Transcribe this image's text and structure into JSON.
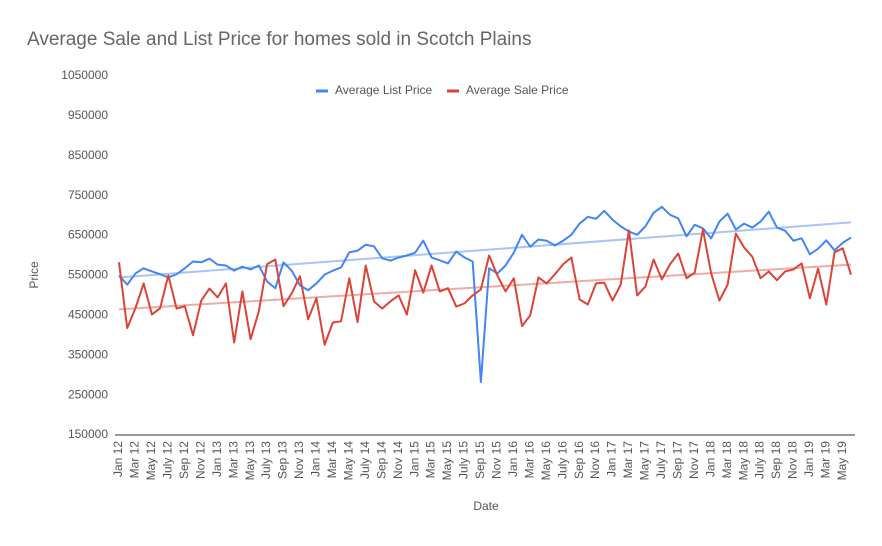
{
  "chart_data": {
    "type": "line",
    "title": "Average Sale and List Price for homes sold in Scotch Plains",
    "x_label": "Date",
    "y_label": "Price",
    "categories": [
      "Jan 12",
      null,
      "Mar 12",
      null,
      "May 12",
      null,
      "July 12",
      null,
      "Sep 12",
      null,
      "Nov 12",
      null,
      "Jan 13",
      null,
      "Mar 13",
      null,
      "May 13",
      null,
      "July 13",
      null,
      "Sep 13",
      null,
      "Nov 13",
      null,
      "Jan 14",
      null,
      "Mar 14",
      null,
      "May 14",
      null,
      "July 14",
      null,
      "Sep 14",
      null,
      "Nov 14",
      null,
      "Jan 15",
      null,
      "Mar 15",
      null,
      "May 15",
      null,
      "July 15",
      null,
      "Sep 15",
      null,
      "Nov 15",
      null,
      "Jan 16",
      null,
      "Mar 16",
      null,
      "May 16",
      null,
      "July 16",
      null,
      "Sep 16",
      null,
      "Nov 16",
      null,
      "Jan 17",
      null,
      "Mar 17",
      null,
      "May 17",
      null,
      "July 17",
      null,
      "Sep 17",
      null,
      "Nov 17",
      null,
      "Jan 18",
      null,
      "Mar 18",
      null,
      "May 18",
      null,
      "July 18",
      null,
      "Sep 18",
      null,
      "Nov 18",
      null,
      "Jan 19",
      null,
      "Mar 19",
      null,
      "May 19",
      null
    ],
    "series": [
      {
        "name": "Average List Price",
        "color": "#4285f4",
        "trend": [
          545000,
          683000
        ],
        "trend_color": "#a8c4f8",
        "values": [
          550000,
          527000,
          555000,
          568000,
          560000,
          553000,
          545000,
          553000,
          568000,
          585000,
          583000,
          592000,
          577000,
          575000,
          562000,
          572000,
          565000,
          575000,
          535000,
          518000,
          583000,
          562000,
          525000,
          513000,
          530000,
          552000,
          562000,
          570000,
          608000,
          612000,
          627000,
          623000,
          593000,
          587000,
          595000,
          600000,
          607000,
          637000,
          595000,
          588000,
          580000,
          610000,
          595000,
          585000,
          283000,
          568000,
          555000,
          575000,
          607000,
          652000,
          622000,
          640000,
          637000,
          625000,
          637000,
          652000,
          680000,
          697000,
          692000,
          712000,
          690000,
          673000,
          660000,
          652000,
          673000,
          707000,
          722000,
          702000,
          693000,
          648000,
          677000,
          668000,
          643000,
          685000,
          705000,
          665000,
          680000,
          670000,
          685000,
          710000,
          670000,
          662000,
          637000,
          643000,
          603000,
          617000,
          638000,
          613000,
          632000,
          645000
        ]
      },
      {
        "name": "Average Sale Price",
        "color": "#db4437",
        "trend": [
          465000,
          577000
        ],
        "trend_color": "#f2aaa4",
        "values": [
          583000,
          418000,
          468000,
          530000,
          452000,
          468000,
          550000,
          467000,
          473000,
          400000,
          487000,
          517000,
          495000,
          530000,
          382000,
          510000,
          390000,
          460000,
          578000,
          590000,
          473000,
          505000,
          548000,
          440000,
          493000,
          376000,
          432000,
          435000,
          543000,
          433000,
          575000,
          485000,
          467000,
          485000,
          500000,
          452000,
          563000,
          507000,
          575000,
          510000,
          518000,
          472000,
          480000,
          500000,
          515000,
          600000,
          550000,
          510000,
          543000,
          423000,
          450000,
          545000,
          530000,
          553000,
          578000,
          595000,
          490000,
          477000,
          530000,
          532000,
          487000,
          527000,
          663000,
          500000,
          522000,
          590000,
          540000,
          578000,
          605000,
          543000,
          557000,
          665000,
          555000,
          487000,
          527000,
          655000,
          620000,
          597000,
          543000,
          560000,
          538000,
          560000,
          565000,
          580000,
          493000,
          567000,
          477000,
          608000,
          618000,
          552000
        ]
      }
    ],
    "ylim": [
      150000,
      1050000
    ],
    "yticks": [
      150000,
      250000,
      350000,
      450000,
      550000,
      650000,
      750000,
      850000,
      950000,
      1050000
    ],
    "grid": false,
    "legend": "top"
  }
}
